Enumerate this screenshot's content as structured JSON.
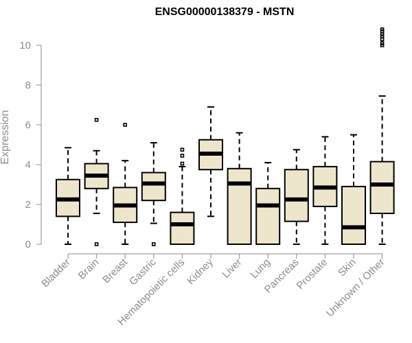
{
  "chart_data": {
    "type": "boxplot",
    "title": "ENSG00000138379 - MSTN",
    "ylabel": "Expression",
    "xlabel": "",
    "ylim": [
      0,
      10.8
    ],
    "yticks": [
      0,
      2,
      4,
      6,
      8,
      10
    ],
    "box_color": "#ede6cc",
    "categories": [
      "Bladder",
      "Brain",
      "Breast",
      "Gastric",
      "Hematopoietic cells",
      "Kidney",
      "Liver",
      "Lung",
      "Pancreas",
      "Prostate",
      "Skin",
      "Unknown / Other"
    ],
    "boxes": [
      {
        "category": "Bladder",
        "whislo": 0,
        "q1": 1.4,
        "med": 2.25,
        "q3": 3.25,
        "whishi": 4.85,
        "fliers": []
      },
      {
        "category": "Brain",
        "whislo": 1.55,
        "q1": 2.8,
        "med": 3.45,
        "q3": 4.05,
        "whishi": 4.7,
        "fliers": [
          0,
          6.25
        ]
      },
      {
        "category": "Breast",
        "whislo": 0,
        "q1": 1.1,
        "med": 1.95,
        "q3": 2.85,
        "whishi": 4.2,
        "fliers": [
          6.0
        ]
      },
      {
        "category": "Gastric",
        "whislo": 1.05,
        "q1": 2.2,
        "med": 3.05,
        "q3": 3.6,
        "whishi": 5.1,
        "fliers": [
          0
        ]
      },
      {
        "category": "Hematopoietic cells",
        "whislo": 0,
        "q1": 0,
        "med": 1.0,
        "q3": 1.6,
        "whishi": 3.9,
        "fliers": [
          4.05,
          4.45,
          4.75
        ]
      },
      {
        "category": "Kidney",
        "whislo": 1.4,
        "q1": 3.75,
        "med": 4.55,
        "q3": 5.25,
        "whishi": 6.9,
        "fliers": []
      },
      {
        "category": "Liver",
        "whislo": 0,
        "q1": 0,
        "med": 3.05,
        "q3": 3.8,
        "whishi": 5.6,
        "fliers": []
      },
      {
        "category": "Lung",
        "whislo": 0,
        "q1": 0,
        "med": 1.95,
        "q3": 2.8,
        "whishi": 4.1,
        "fliers": []
      },
      {
        "category": "Pancreas",
        "whislo": 0,
        "q1": 1.15,
        "med": 2.25,
        "q3": 3.75,
        "whishi": 4.75,
        "fliers": []
      },
      {
        "category": "Prostate",
        "whislo": 0,
        "q1": 1.9,
        "med": 2.85,
        "q3": 3.9,
        "whishi": 5.4,
        "fliers": []
      },
      {
        "category": "Skin",
        "whislo": 0,
        "q1": 0,
        "med": 0.85,
        "q3": 2.9,
        "whishi": 5.5,
        "fliers": []
      },
      {
        "category": "Unknown / Other",
        "whislo": 0,
        "q1": 1.55,
        "med": 3.0,
        "q3": 4.15,
        "whishi": 7.45,
        "fliers": [
          10.0,
          10.1,
          10.3,
          10.45,
          10.55,
          10.7,
          10.8
        ]
      }
    ]
  }
}
